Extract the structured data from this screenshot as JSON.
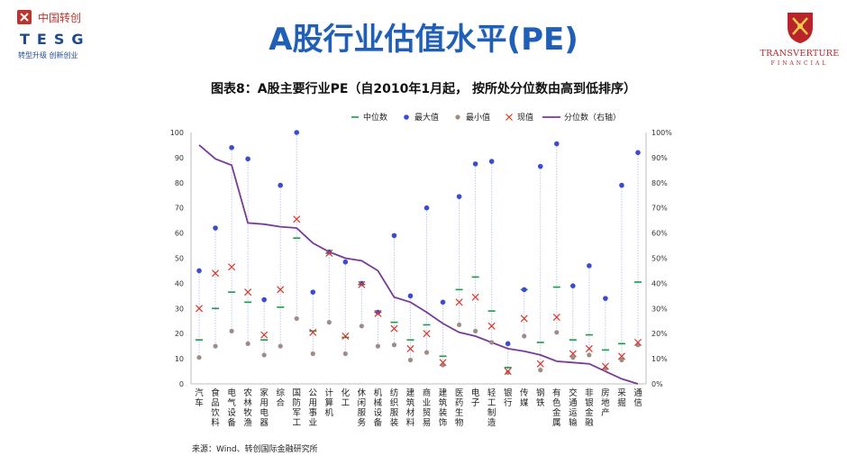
{
  "header": {
    "left_logo": {
      "cn": "中国转创",
      "tesg": "TESG",
      "slogan": "转型升级 创新创业"
    },
    "title": "A股行业估值水平(PE)",
    "right_logo": {
      "brand": "TRANSVERTURE",
      "sub": "FINANCIAL"
    }
  },
  "colors": {
    "median": "#1a9a4a",
    "max": "#3b4bd6",
    "min": "#a08c86",
    "current": "#e0352b",
    "percentile": "#7a3a9a",
    "title": "#1f5fb8",
    "range_line": "#b9c9e4"
  },
  "chart_data": {
    "type": "scatter",
    "title": "图表8：A股主要行业PE（自2010年1月起， 按所处分位数由高到低排序）",
    "legend": [
      "中位数",
      "最大值",
      "最小值",
      "现值",
      "分位数（右轴）"
    ],
    "legend_position": "top",
    "categories": [
      "汽车",
      "食品饮料",
      "电气设备",
      "农林牧渔",
      "家用电器",
      "综合",
      "国防军工",
      "公用事业",
      "计算机",
      "化工",
      "休闲服务",
      "机械设备",
      "纺织服装",
      "建筑材料",
      "商业贸易",
      "建筑装饰",
      "医药生物",
      "电子",
      "轻工制造",
      "银行",
      "传媒",
      "钢铁",
      "有色金属",
      "交通运输",
      "非银金融",
      "房地产",
      "采掘",
      "通信"
    ],
    "y_left_ticks": [
      "0",
      "10",
      "20",
      "30",
      "40",
      "50",
      "60",
      "70",
      "80",
      "90",
      "100"
    ],
    "y_right_ticks": [
      "0%",
      "10%",
      "20%",
      "30%",
      "40%",
      "50%",
      "60%",
      "70%",
      "80%",
      "90%",
      "100%"
    ],
    "ylim_left": [
      0,
      100
    ],
    "ylim_right": [
      0,
      100
    ],
    "series": [
      {
        "name": "中位数",
        "values": [
          17.5,
          30,
          36.5,
          32.5,
          17.5,
          30.5,
          58,
          21,
          52,
          18.5,
          39.5,
          28.5,
          24.5,
          17.5,
          23.5,
          11,
          37.5,
          42.5,
          29,
          6.5,
          37.5,
          16.5,
          38.5,
          17.5,
          19.5,
          13.5,
          16,
          40.5
        ]
      },
      {
        "name": "最大值",
        "values": [
          45,
          62,
          94,
          89.5,
          33.5,
          79,
          100,
          36.5,
          52.5,
          48.5,
          40,
          28.5,
          59,
          35,
          70,
          32.5,
          74.5,
          87.5,
          88.5,
          16,
          37.5,
          86.5,
          95.5,
          39,
          47,
          34,
          79,
          92
        ]
      },
      {
        "name": "最小值",
        "values": [
          10.5,
          15,
          21,
          16,
          11.5,
          15,
          26,
          12,
          24.5,
          12,
          23,
          15,
          15.5,
          9.5,
          12.5,
          7.5,
          23.5,
          21,
          16.5,
          4.5,
          19,
          5.5,
          20.5,
          10.5,
          11.5,
          6,
          9.5,
          15.5
        ]
      },
      {
        "name": "现值",
        "values": [
          30,
          44,
          46.5,
          36.5,
          19.5,
          37.5,
          65.5,
          20.5,
          52,
          19,
          39.5,
          28,
          22,
          14,
          20,
          8.5,
          32.5,
          34.5,
          23,
          5,
          26,
          8,
          26.5,
          12,
          14,
          7,
          11,
          16.5
        ]
      },
      {
        "name": "分位数（右轴）",
        "axis": "right",
        "values": [
          95,
          89.5,
          87,
          64,
          63.5,
          62.5,
          62,
          56,
          52.5,
          50,
          49,
          45,
          34.5,
          32.5,
          28.5,
          24,
          20.5,
          19,
          16.5,
          14,
          13,
          11.5,
          9,
          8.5,
          8,
          5,
          2,
          0
        ]
      }
    ],
    "source": "来源：Wind、转创国际金融研究所"
  }
}
